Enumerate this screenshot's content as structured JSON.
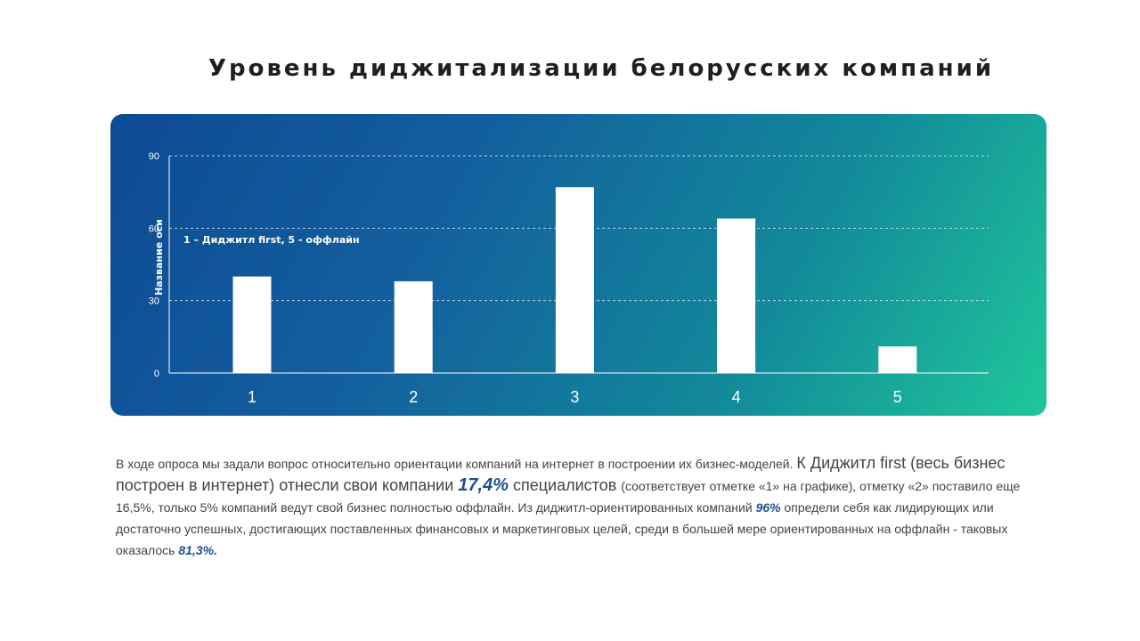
{
  "title": "Уровень диджитализации белорусских компаний",
  "chart_data": {
    "type": "bar",
    "categories": [
      "1",
      "2",
      "3",
      "4",
      "5"
    ],
    "values": [
      40,
      38,
      77,
      64,
      11
    ],
    "ylim": [
      0,
      90
    ],
    "yticks": [
      "0",
      "30",
      "60",
      "90"
    ],
    "ylabel": "Название оси",
    "annotation": "1 – Диджитл first, 5 - оффлайн",
    "grid": true,
    "legend": "none",
    "colors": {
      "bar": "#ffffff",
      "grid": "#d8e4ef",
      "bg_start": "#0d4a94",
      "bg_end": "#1fc79a"
    }
  },
  "text": {
    "p1": "В ходе опроса мы задали вопрос относительно ориентации компаний на интернет в построении их бизнес-моделей. ",
    "p2": "К Диджитл first (весь бизнес построен в интернет) отнесли свои компании ",
    "v1": "17,4%",
    "p3": " специалистов ",
    "p4": "(соответствует отметке «1» на графике), отметку «2» поставило еще 16,5%, только 5% компаний ведут свой бизнес полностью оффлайн. Из диджитл-ориентированных компаний ",
    "v2": "96%",
    "p5": " определи себя как лидирующих или достаточно успешных, достигающих поставленных финансовых и маркетинговых целей, среди в большей мере ориентированных на оффлайн - таковых оказалось ",
    "v3": "81,3%."
  }
}
